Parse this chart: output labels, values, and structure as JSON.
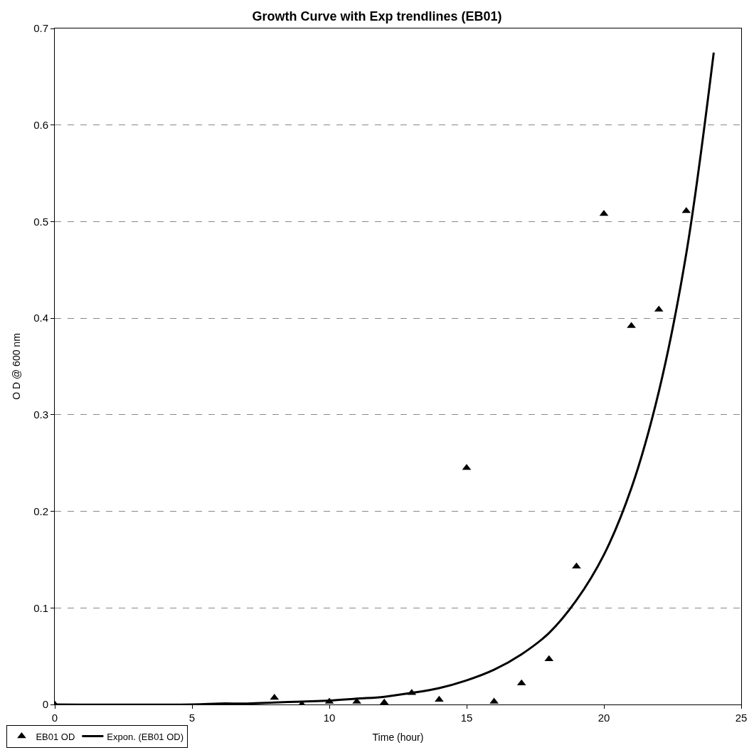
{
  "chart_data": {
    "type": "scatter",
    "title": "Growth Curve with Exp trendlines (EB01)",
    "xlabel": "Time (hour)",
    "ylabel": "O D @ 600 nm",
    "xlim": [
      0,
      25
    ],
    "xticks": [
      0,
      5,
      10,
      15,
      20,
      25
    ],
    "ylim": [
      0,
      0.7
    ],
    "yticks": [
      0,
      0.1,
      0.2,
      0.3,
      0.4,
      0.5,
      0.6,
      0.7
    ],
    "grid": "y",
    "legend": "bottom left",
    "series": [
      {
        "name": "EB01 OD",
        "marker": "triangle",
        "color": "#000000",
        "x": [
          0,
          8,
          9,
          10,
          11,
          12,
          13,
          14,
          15,
          16,
          17,
          18,
          19,
          20,
          21,
          22,
          23
        ],
        "values": [
          0,
          0.007,
          0,
          0.003,
          0.003,
          0.002,
          0.012,
          0.005,
          0.245,
          0.003,
          0.022,
          0.047,
          0.143,
          0.508,
          0.392,
          0.409,
          0.511
        ]
      },
      {
        "name": "Expon. (EB01 OD)",
        "type": "line",
        "marker": "none",
        "line_style": "solid",
        "color": "#000000",
        "x": [
          0,
          5,
          6,
          7,
          8,
          9,
          10,
          11,
          12,
          13,
          14,
          15,
          16,
          17,
          18,
          19,
          20,
          21,
          22,
          23,
          24
        ],
        "values": [
          0,
          0,
          0.001,
          0.001,
          0.002,
          0.003,
          0.004,
          0.006,
          0.008,
          0.012,
          0.017,
          0.025,
          0.036,
          0.052,
          0.074,
          0.108,
          0.155,
          0.224,
          0.324,
          0.467,
          0.675
        ]
      }
    ]
  }
}
